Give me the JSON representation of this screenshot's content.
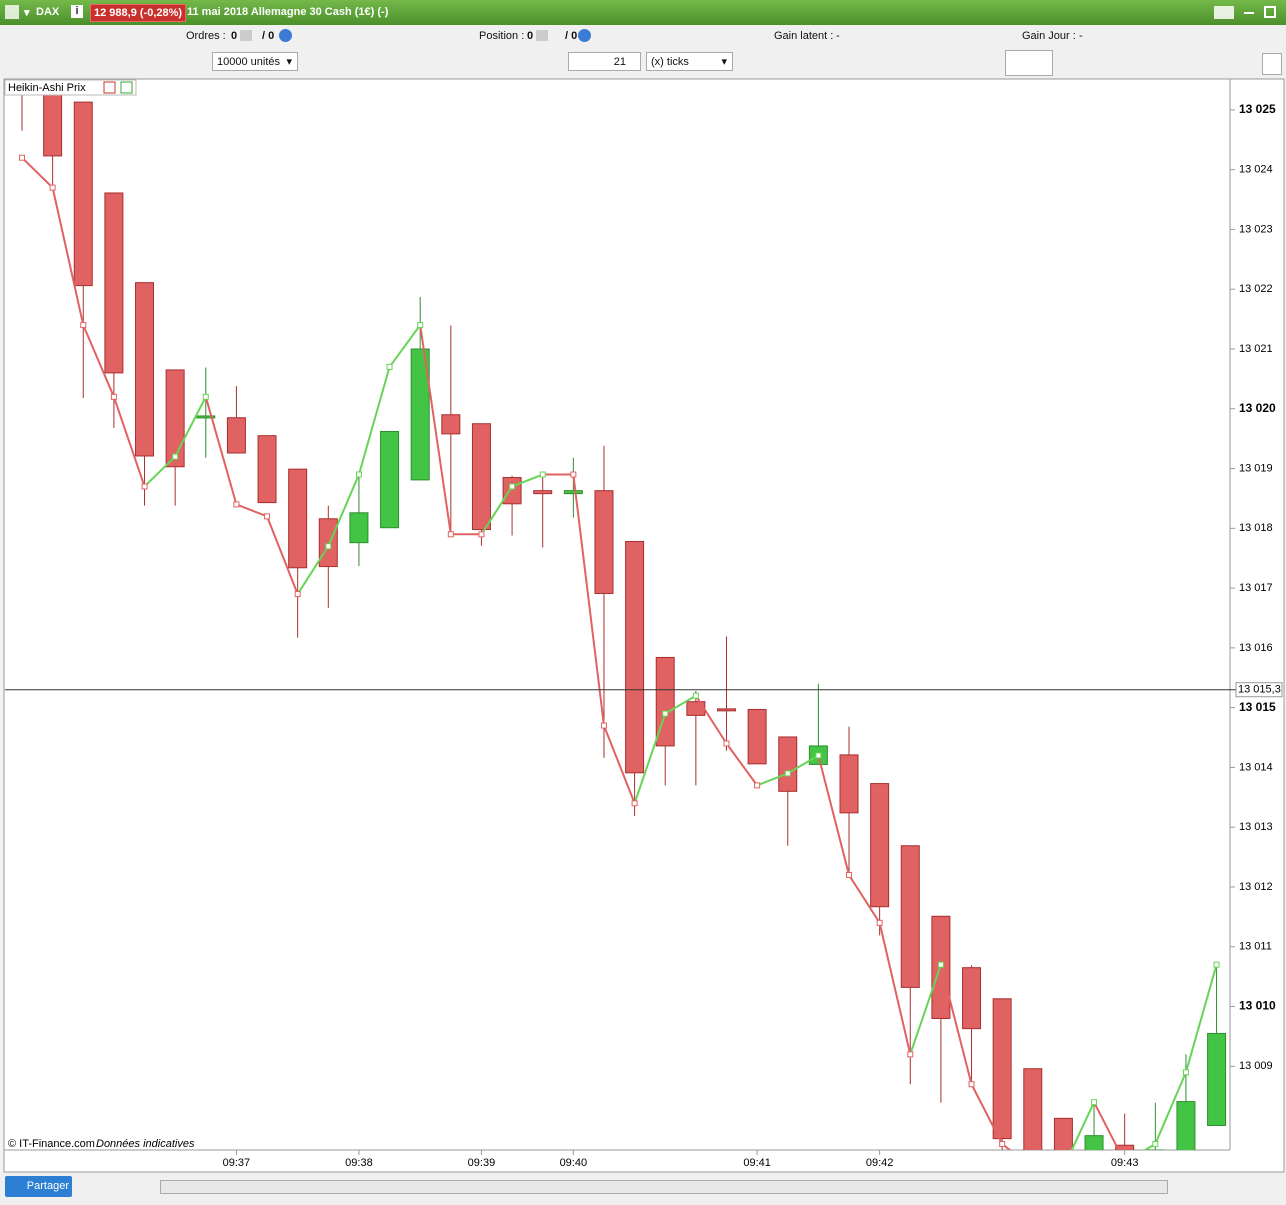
{
  "window": {
    "symbol": "DAX",
    "quote": "12 988,9 (-0,28%)",
    "title": "11 mai 2018 Allemagne 30 Cash (1€) (-)"
  },
  "status": {
    "orders_label": "Ordres :",
    "orders_value": "0",
    "orders_total": "/ 0",
    "position_label": "Position :",
    "position_value": "0",
    "position_total": "/ 0",
    "gain_latent_label": "Gain latent :",
    "gain_latent_value": "-",
    "gain_day_label": "Gain Jour :",
    "gain_day_value": "-"
  },
  "toolbar": {
    "quantity": "10000 unités",
    "step": "21",
    "step_unit": "(x) ticks"
  },
  "footer": {
    "copyright": "© IT-Finance.com",
    "note": "Données indicatives",
    "share": "Partager"
  },
  "chart_data": {
    "type": "candlestick",
    "indicator": "Heikin-Ashi Prix",
    "categories": [
      null,
      null,
      null,
      null,
      null,
      null,
      null,
      "09:37",
      null,
      null,
      null,
      "09:38",
      null,
      null,
      null,
      "09:39",
      null,
      null,
      "09:40",
      null,
      null,
      null,
      null,
      null,
      "09:41",
      null,
      null,
      null,
      "09:42",
      null,
      null,
      null,
      null,
      null,
      null,
      null,
      "09:43",
      null,
      null,
      null
    ],
    "open": [
      13026.0,
      13025.35,
      13025.13,
      13023.61,
      13022.11,
      13020.65,
      13019.85,
      13019.85,
      13019.55,
      13018.99,
      13018.16,
      13017.76,
      13018.01,
      13018.81,
      13019.9,
      13019.75,
      13018.85,
      13018.63,
      13018.58,
      13018.63,
      13017.78,
      13015.84,
      13015.1,
      13014.98,
      13014.97,
      13014.51,
      13014.05,
      13014.21,
      13013.73,
      13012.69,
      13011.51,
      13010.65,
      13010.13,
      13008.96,
      13008.13,
      13007.4,
      13007.68,
      13007.5,
      13007.5,
      13008.01
    ],
    "high": [
      13026.2,
      13025.5,
      13025.13,
      13023.61,
      13022.11,
      13020.65,
      13020.69,
      13020.38,
      13019.55,
      13018.99,
      13018.38,
      13018.88,
      13019.62,
      13021.87,
      13021.39,
      13019.75,
      13018.88,
      13018.88,
      13019.18,
      13019.38,
      13017.78,
      13015.84,
      13015.28,
      13016.19,
      13014.97,
      13014.51,
      13015.4,
      13014.68,
      13013.73,
      13012.69,
      13011.51,
      13010.69,
      13010.13,
      13008.96,
      13008.13,
      13008.39,
      13008.21,
      13008.39,
      13009.2,
      13010.67
    ],
    "low": [
      13024.65,
      13023.73,
      13020.18,
      13019.68,
      13018.38,
      13018.38,
      13019.18,
      13019.26,
      13018.43,
      13016.17,
      13016.67,
      13017.37,
      13018.01,
      13018.81,
      13017.88,
      13017.71,
      13017.88,
      13017.68,
      13018.18,
      13014.16,
      13013.19,
      13013.7,
      13013.7,
      13014.28,
      13014.06,
      13012.69,
      13014.05,
      13012.19,
      13011.19,
      13008.7,
      13008.39,
      13008.7,
      13007.5,
      13007.2,
      13007.2,
      13007.3,
      13007.3,
      13007.5,
      13007.5,
      13008.01
    ],
    "close": [
      13025.3,
      13024.23,
      13022.06,
      13020.6,
      13019.21,
      13019.03,
      13019.88,
      13019.26,
      13018.43,
      13017.34,
      13017.36,
      13018.26,
      13019.62,
      13021.0,
      13019.58,
      13017.98,
      13018.41,
      13018.58,
      13018.63,
      13016.91,
      13013.91,
      13014.36,
      13014.87,
      13014.95,
      13014.06,
      13013.6,
      13014.36,
      13013.24,
      13011.67,
      13010.32,
      13009.8,
      13009.63,
      13007.79,
      13007.3,
      13007.3,
      13007.84,
      13007.4,
      13007.6,
      13008.41,
      13009.55
    ],
    "line_values": [
      13024.2,
      13023.7,
      13021.4,
      13020.2,
      13018.7,
      13019.2,
      13020.2,
      13018.4,
      13018.2,
      13016.9,
      13017.7,
      13018.9,
      13020.7,
      13021.4,
      13017.9,
      13017.9,
      13018.7,
      13018.9,
      13018.9,
      13014.7,
      13013.4,
      13014.9,
      13015.2,
      13014.4,
      13013.7,
      13013.9,
      13014.2,
      13012.2,
      13011.4,
      13009.2,
      13010.7,
      13008.7,
      13007.7,
      13007.3,
      13007.3,
      13008.4,
      13007.4,
      13007.7,
      13008.9,
      13010.7
    ],
    "up_color": "#44c444",
    "down_color": "#e06262",
    "up_wick_color": "#2e8f2e",
    "down_wick_color": "#a83030",
    "line_up_color": "#66d455",
    "line_down_color": "#e06262",
    "ylim": [
      13007.6,
      13025.5
    ],
    "yticks": [
      {
        "value": 13009,
        "label": "13 009"
      },
      {
        "value": 13010,
        "label": "13 010"
      },
      {
        "value": 13011,
        "label": "13 011"
      },
      {
        "value": 13012,
        "label": "13 012"
      },
      {
        "value": 13013,
        "label": "13 013"
      },
      {
        "value": 13014,
        "label": "13 014"
      },
      {
        "value": 13015,
        "label": "13 015"
      },
      {
        "value": 13016,
        "label": "13 016"
      },
      {
        "value": 13017,
        "label": "13 017"
      },
      {
        "value": 13018,
        "label": "13 018"
      },
      {
        "value": 13019,
        "label": "13 019"
      },
      {
        "value": 13020,
        "label": "13 020"
      },
      {
        "value": 13021,
        "label": "13 021"
      },
      {
        "value": 13022,
        "label": "13 022"
      },
      {
        "value": 13023,
        "label": "13 023"
      },
      {
        "value": 13024,
        "label": "13 024"
      },
      {
        "value": 13025,
        "label": "13 025"
      }
    ],
    "crosshair": {
      "value": 13015.3,
      "label": "13 015,3"
    }
  }
}
